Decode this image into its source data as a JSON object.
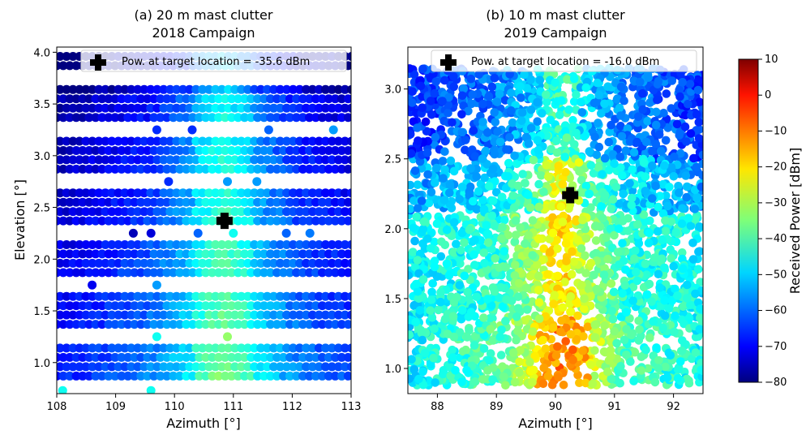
{
  "chart_data": [
    {
      "type": "scatter",
      "title_line1": "(a) 20 m mast clutter",
      "title_line2": "2018 Campaign",
      "xlabel": "Azimuth [°]",
      "ylabel": "Elevation [°]",
      "xlim": [
        108,
        113
      ],
      "ylim": [
        0.7,
        4.05
      ],
      "xticks": [
        "108",
        "109",
        "110",
        "111",
        "112",
        "113"
      ],
      "yticks": [
        "1.0",
        "1.5",
        "2.0",
        "2.5",
        "3.0",
        "3.5",
        "4.0"
      ],
      "legend": "Pow. at target location = -35.6 dBm",
      "target": {
        "x": 110.85,
        "y": 2.37
      },
      "rows": [
        0.87,
        0.96,
        1.05,
        1.14,
        1.37,
        1.46,
        1.55,
        1.64,
        1.87,
        1.96,
        2.05,
        2.14,
        2.37,
        2.46,
        2.55,
        2.64,
        2.87,
        2.96,
        3.05,
        3.14,
        3.37,
        3.46,
        3.55,
        3.64,
        3.87,
        3.96
      ],
      "sparse_points": [
        {
          "x": 108.1,
          "y": 0.73,
          "p": -45
        },
        {
          "x": 109.6,
          "y": 0.73,
          "p": -45
        },
        {
          "x": 110.9,
          "y": 1.25,
          "p": -33
        },
        {
          "x": 109.7,
          "y": 1.25,
          "p": -45
        },
        {
          "x": 109.7,
          "y": 1.75,
          "p": -55
        },
        {
          "x": 108.6,
          "y": 1.75,
          "p": -70
        },
        {
          "x": 109.3,
          "y": 2.25,
          "p": -75
        },
        {
          "x": 109.6,
          "y": 2.25,
          "p": -72
        },
        {
          "x": 110.4,
          "y": 2.25,
          "p": -60
        },
        {
          "x": 111.0,
          "y": 2.25,
          "p": -45
        },
        {
          "x": 111.9,
          "y": 2.25,
          "p": -60
        },
        {
          "x": 112.3,
          "y": 2.25,
          "p": -58
        },
        {
          "x": 109.9,
          "y": 2.75,
          "p": -65
        },
        {
          "x": 110.9,
          "y": 2.75,
          "p": -55
        },
        {
          "x": 111.4,
          "y": 2.75,
          "p": -55
        },
        {
          "x": 109.7,
          "y": 3.25,
          "p": -65
        },
        {
          "x": 110.3,
          "y": 3.25,
          "p": -65
        },
        {
          "x": 111.6,
          "y": 3.25,
          "p": -60
        },
        {
          "x": 112.7,
          "y": 3.25,
          "p": -55
        }
      ]
    },
    {
      "type": "scatter",
      "title_line1": "(b) 10 m mast clutter",
      "title_line2": "2019 Campaign",
      "xlabel": "Azimuth [°]",
      "ylabel": "",
      "xlim": [
        87.5,
        92.5
      ],
      "ylim": [
        0.82,
        3.3
      ],
      "xticks": [
        "88",
        "89",
        "90",
        "91",
        "92"
      ],
      "yticks": [
        "1.0",
        "1.5",
        "2.0",
        "2.5",
        "3.0"
      ],
      "legend": "Pow. at target location = -16.0 dBm",
      "target": {
        "x": 90.25,
        "y": 2.24
      }
    }
  ],
  "colorbar": {
    "label": "Received Power [dBm]",
    "min": -80,
    "max": 10,
    "ticks": [
      "10",
      "0",
      "−10",
      "−20",
      "−30",
      "−40",
      "−50",
      "−60",
      "−70",
      "−80"
    ]
  }
}
